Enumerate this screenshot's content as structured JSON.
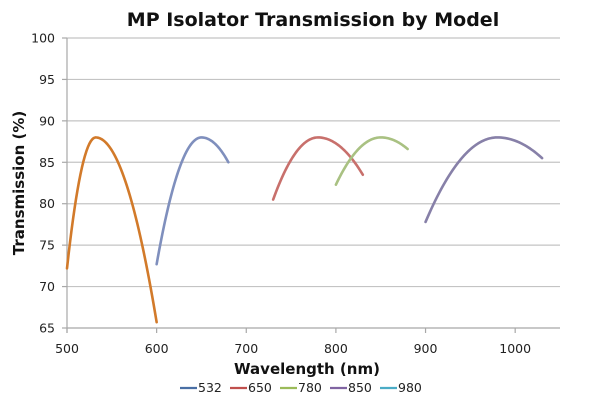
{
  "chart_data": {
    "type": "line",
    "title": "MP Isolator Transmission by Model",
    "xlabel": "Wavelength (nm)",
    "ylabel": "Transmission (%)",
    "xlim": [
      500,
      1050
    ],
    "ylim": [
      65,
      100
    ],
    "xticks": [
      500,
      600,
      700,
      800,
      900,
      1000
    ],
    "yticks": [
      65,
      70,
      75,
      80,
      85,
      90,
      95,
      100
    ],
    "grid": "horizontal",
    "legend_position": "bottom",
    "legend": [
      {
        "name": "532",
        "color": "#4a6fa5"
      },
      {
        "name": "650",
        "color": "#c0504d"
      },
      {
        "name": "780",
        "color": "#9bbb59"
      },
      {
        "name": "850",
        "color": "#8064a2"
      },
      {
        "name": "980",
        "color": "#4bacc6"
      }
    ],
    "series": [
      {
        "name": "532",
        "color": "#d27a2a",
        "x_start": 500,
        "x_peak": 532,
        "x_end": 600,
        "y_start": 72.2,
        "y_peak": 88,
        "y_end": 65.7
      },
      {
        "name": "650",
        "color": "#7f8fbd",
        "x_start": 600,
        "x_peak": 650,
        "x_end": 680,
        "y_start": 72.7,
        "y_peak": 88,
        "y_end": 85
      },
      {
        "name": "780",
        "color": "#c8706c",
        "x_start": 730,
        "x_peak": 780,
        "x_end": 830,
        "y_start": 80.5,
        "y_peak": 88,
        "y_end": 83.5
      },
      {
        "name": "850",
        "color": "#a9c182",
        "x_start": 800,
        "x_peak": 850,
        "x_end": 880,
        "y_start": 82.3,
        "y_peak": 88,
        "y_end": 86.6
      },
      {
        "name": "980",
        "color": "#8780a8",
        "x_start": 900,
        "x_peak": 980,
        "x_end": 1030,
        "y_start": 77.8,
        "y_peak": 88,
        "y_end": 85.5
      }
    ]
  }
}
